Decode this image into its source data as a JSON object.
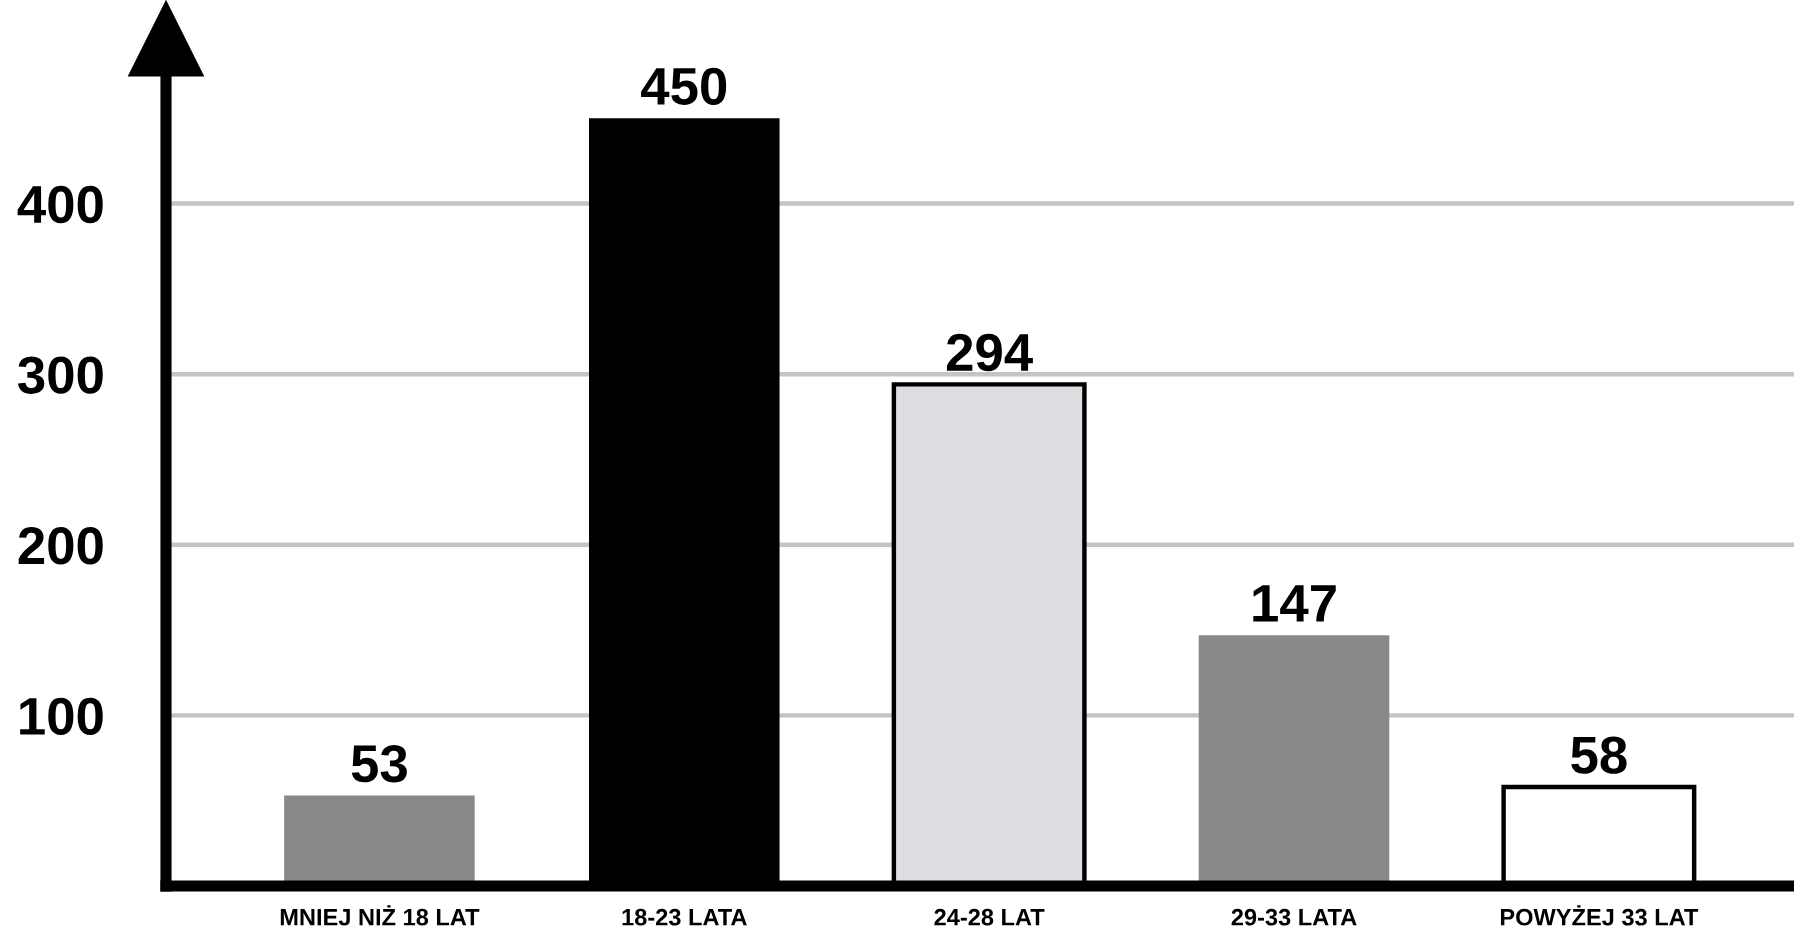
{
  "chart_data": {
    "type": "bar",
    "categories": [
      "MNIEJ NIŻ 18 LAT",
      "18-23 LATA",
      "24-28 LAT",
      "29-33 LATA",
      "POWYŻEJ 33 LAT"
    ],
    "values": [
      53,
      450,
      294,
      147,
      58
    ],
    "colors": [
      "#88888a",
      "#000000",
      "#dcdde0",
      "#88888a",
      "#ffffff"
    ],
    "ylim": [
      0,
      490
    ],
    "yticks": [
      100,
      200,
      300,
      400
    ],
    "grid": "y",
    "data_labels": true
  }
}
